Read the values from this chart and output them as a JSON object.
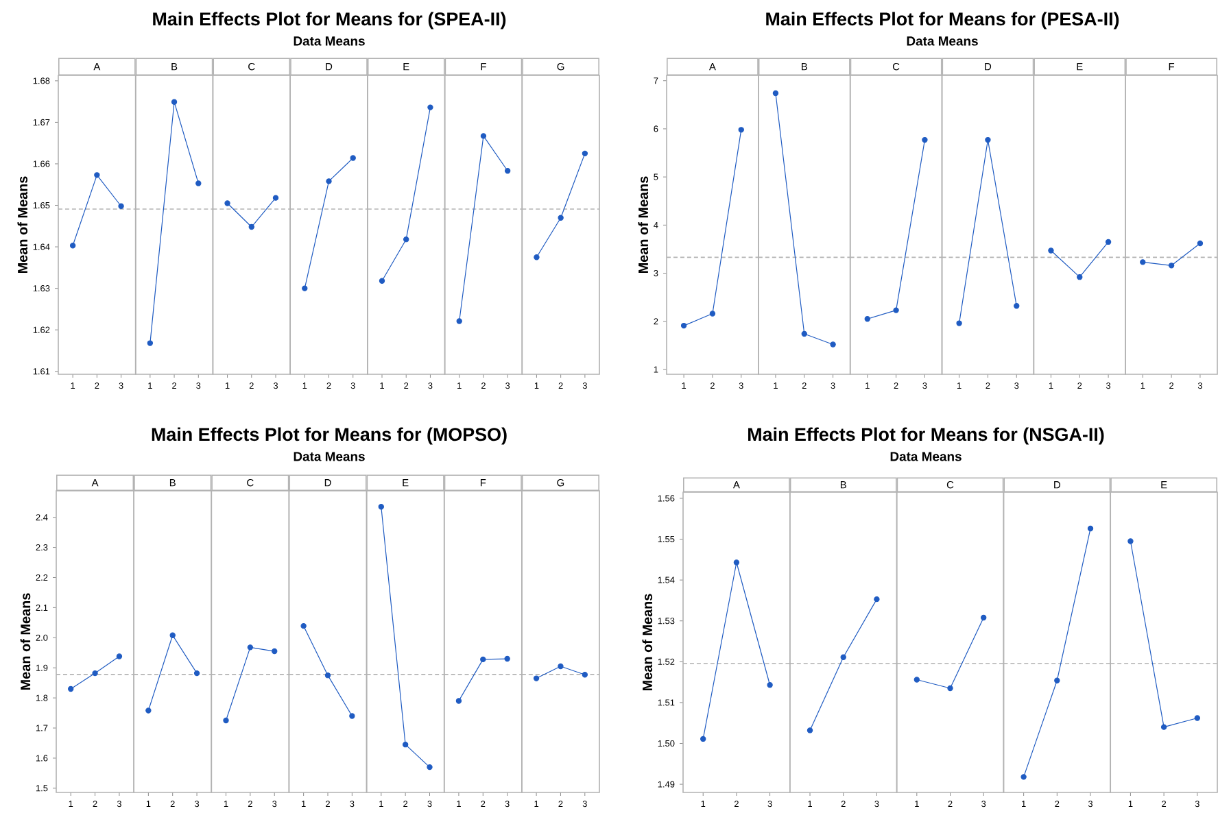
{
  "chart_data": [
    {
      "type": "other",
      "title": "Main Effects Plot for Means for (SPEA-II)",
      "subtitle": "Data Means"
    },
    {
      "type": "line",
      "title": "A",
      "ylabel": "Mean of Means",
      "categories": [
        "1",
        "2",
        "3"
      ],
      "values": [
        1.6403,
        1.6573,
        1.6498
      ],
      "color": "#1f5bc2",
      "marker": "circle",
      "ylim": [
        1.6093,
        1.6813
      ],
      "yticks": [
        1.61,
        1.62,
        1.63,
        1.64,
        1.65,
        1.66,
        1.67,
        1.68
      ],
      "ref_lines": [
        {
          "axis": "y",
          "value": 1.6491,
          "color": "#b4b4b4",
          "line_style": "dashed"
        }
      ]
    },
    {
      "type": "line",
      "title": "B",
      "categories": [
        "1",
        "2",
        "3"
      ],
      "values": [
        1.6168,
        1.6749,
        1.6553
      ],
      "color": "#1f5bc2",
      "marker": "circle",
      "ylim": [
        1.6093,
        1.6813
      ],
      "tick_labels": "x",
      "ref_lines": [
        {
          "axis": "y",
          "value": 1.6491,
          "color": "#b4b4b4",
          "line_style": "dashed"
        }
      ]
    },
    {
      "type": "line",
      "title": "C",
      "categories": [
        "1",
        "2",
        "3"
      ],
      "values": [
        1.6505,
        1.6448,
        1.6518
      ],
      "color": "#1f5bc2",
      "marker": "circle",
      "ylim": [
        1.6093,
        1.6813
      ],
      "tick_labels": "x",
      "ref_lines": [
        {
          "axis": "y",
          "value": 1.6491,
          "color": "#b4b4b4",
          "line_style": "dashed"
        }
      ]
    },
    {
      "type": "line",
      "title": "D",
      "categories": [
        "1",
        "2",
        "3"
      ],
      "values": [
        1.63,
        1.6558,
        1.6614
      ],
      "color": "#1f5bc2",
      "marker": "circle",
      "ylim": [
        1.6093,
        1.6813
      ],
      "tick_labels": "x",
      "ref_lines": [
        {
          "axis": "y",
          "value": 1.6491,
          "color": "#b4b4b4",
          "line_style": "dashed"
        }
      ]
    },
    {
      "type": "line",
      "title": "E",
      "categories": [
        "1",
        "2",
        "3"
      ],
      "values": [
        1.6318,
        1.6418,
        1.6736
      ],
      "color": "#1f5bc2",
      "marker": "circle",
      "ylim": [
        1.6093,
        1.6813
      ],
      "tick_labels": "x",
      "ref_lines": [
        {
          "axis": "y",
          "value": 1.6491,
          "color": "#b4b4b4",
          "line_style": "dashed"
        }
      ]
    },
    {
      "type": "line",
      "title": "F",
      "categories": [
        "1",
        "2",
        "3"
      ],
      "values": [
        1.6221,
        1.6667,
        1.6583
      ],
      "color": "#1f5bc2",
      "marker": "circle",
      "ylim": [
        1.6093,
        1.6813
      ],
      "tick_labels": "x",
      "ref_lines": [
        {
          "axis": "y",
          "value": 1.6491,
          "color": "#b4b4b4",
          "line_style": "dashed"
        }
      ]
    },
    {
      "type": "line",
      "title": "G",
      "categories": [
        "1",
        "2",
        "3"
      ],
      "values": [
        1.6375,
        1.647,
        1.6625
      ],
      "color": "#1f5bc2",
      "marker": "circle",
      "ylim": [
        1.6093,
        1.6813
      ],
      "tick_labels": "x",
      "ref_lines": [
        {
          "axis": "y",
          "value": 1.6491,
          "color": "#b4b4b4",
          "line_style": "dashed"
        }
      ]
    },
    {
      "type": "other",
      "title": "Main Effects Plot for Means for (PESA-II)",
      "subtitle": "Data Means"
    },
    {
      "type": "line",
      "title": "A",
      "ylabel": "Mean of Means",
      "categories": [
        "1",
        "2",
        "3"
      ],
      "values": [
        1.91,
        2.16,
        5.98
      ],
      "color": "#1f5bc2",
      "marker": "circle",
      "ylim": [
        0.9,
        7.11
      ],
      "yticks": [
        1,
        2,
        3,
        4,
        5,
        6,
        7
      ],
      "ref_lines": [
        {
          "axis": "y",
          "value": 3.33,
          "color": "#b4b4b4",
          "line_style": "dashed"
        }
      ]
    },
    {
      "type": "line",
      "title": "B",
      "categories": [
        "1",
        "2",
        "3"
      ],
      "values": [
        6.74,
        1.74,
        1.52
      ],
      "color": "#1f5bc2",
      "marker": "circle",
      "ylim": [
        0.9,
        7.11
      ],
      "tick_labels": "x",
      "ref_lines": [
        {
          "axis": "y",
          "value": 3.33,
          "color": "#b4b4b4",
          "line_style": "dashed"
        }
      ]
    },
    {
      "type": "line",
      "title": "C",
      "categories": [
        "1",
        "2",
        "3"
      ],
      "values": [
        2.05,
        2.23,
        5.77
      ],
      "color": "#1f5bc2",
      "marker": "circle",
      "ylim": [
        0.9,
        7.11
      ],
      "tick_labels": "x",
      "ref_lines": [
        {
          "axis": "y",
          "value": 3.33,
          "color": "#b4b4b4",
          "line_style": "dashed"
        }
      ]
    },
    {
      "type": "line",
      "title": "D",
      "categories": [
        "1",
        "2",
        "3"
      ],
      "values": [
        1.96,
        5.77,
        2.32
      ],
      "color": "#1f5bc2",
      "marker": "circle",
      "ylim": [
        0.9,
        7.11
      ],
      "tick_labels": "x",
      "ref_lines": [
        {
          "axis": "y",
          "value": 3.33,
          "color": "#b4b4b4",
          "line_style": "dashed"
        }
      ]
    },
    {
      "type": "line",
      "title": "E",
      "categories": [
        "1",
        "2",
        "3"
      ],
      "values": [
        3.47,
        2.92,
        3.65
      ],
      "color": "#1f5bc2",
      "marker": "circle",
      "ylim": [
        0.9,
        7.11
      ],
      "tick_labels": "x",
      "ref_lines": [
        {
          "axis": "y",
          "value": 3.33,
          "color": "#b4b4b4",
          "line_style": "dashed"
        }
      ]
    },
    {
      "type": "line",
      "title": "F",
      "categories": [
        "1",
        "2",
        "3"
      ],
      "values": [
        3.23,
        3.16,
        3.62
      ],
      "color": "#1f5bc2",
      "marker": "circle",
      "ylim": [
        0.9,
        7.11
      ],
      "tick_labels": "x",
      "ref_lines": [
        {
          "axis": "y",
          "value": 3.33,
          "color": "#b4b4b4",
          "line_style": "dashed"
        }
      ]
    },
    {
      "type": "other",
      "title": "Main Effects Plot for Means for (MOPSO)",
      "subtitle": "Data Means"
    },
    {
      "type": "line",
      "title": "A",
      "ylabel": "Mean of Means",
      "categories": [
        "1",
        "2",
        "3"
      ],
      "values": [
        1.83,
        1.882,
        1.938
      ],
      "color": "#1f5bc2",
      "marker": "circle",
      "ylim": [
        1.486,
        2.488
      ],
      "yticks": [
        1.5,
        1.6,
        1.7,
        1.8,
        1.9,
        {
          "value": 2.0,
          "label": "2.0"
        },
        2.1,
        2.2,
        2.3,
        2.4
      ],
      "ref_lines": [
        {
          "axis": "y",
          "value": 1.878,
          "color": "#b4b4b4",
          "line_style": "dashed"
        }
      ]
    },
    {
      "type": "line",
      "title": "B",
      "categories": [
        "1",
        "2",
        "3"
      ],
      "values": [
        1.758,
        2.008,
        1.882
      ],
      "color": "#1f5bc2",
      "marker": "circle",
      "ylim": [
        1.486,
        2.488
      ],
      "tick_labels": "x",
      "ref_lines": [
        {
          "axis": "y",
          "value": 1.878,
          "color": "#b4b4b4",
          "line_style": "dashed"
        }
      ]
    },
    {
      "type": "line",
      "title": "C",
      "categories": [
        "1",
        "2",
        "3"
      ],
      "values": [
        1.725,
        1.968,
        1.955
      ],
      "color": "#1f5bc2",
      "marker": "circle",
      "ylim": [
        1.486,
        2.488
      ],
      "tick_labels": "x",
      "ref_lines": [
        {
          "axis": "y",
          "value": 1.878,
          "color": "#b4b4b4",
          "line_style": "dashed"
        }
      ]
    },
    {
      "type": "line",
      "title": "D",
      "categories": [
        "1",
        "2",
        "3"
      ],
      "values": [
        2.039,
        1.875,
        1.74
      ],
      "color": "#1f5bc2",
      "marker": "circle",
      "ylim": [
        1.486,
        2.488
      ],
      "tick_labels": "x",
      "ref_lines": [
        {
          "axis": "y",
          "value": 1.878,
          "color": "#b4b4b4",
          "line_style": "dashed"
        }
      ]
    },
    {
      "type": "line",
      "title": "E",
      "categories": [
        "1",
        "2",
        "3"
      ],
      "values": [
        2.435,
        1.645,
        1.57
      ],
      "color": "#1f5bc2",
      "marker": "circle",
      "ylim": [
        1.486,
        2.488
      ],
      "tick_labels": "x",
      "ref_lines": [
        {
          "axis": "y",
          "value": 1.878,
          "color": "#b4b4b4",
          "line_style": "dashed"
        }
      ]
    },
    {
      "type": "line",
      "title": "F",
      "categories": [
        "1",
        "2",
        "3"
      ],
      "values": [
        1.79,
        1.928,
        1.93
      ],
      "color": "#1f5bc2",
      "marker": "circle",
      "ylim": [
        1.486,
        2.488
      ],
      "tick_labels": "x",
      "ref_lines": [
        {
          "axis": "y",
          "value": 1.878,
          "color": "#b4b4b4",
          "line_style": "dashed"
        }
      ]
    },
    {
      "type": "line",
      "title": "G",
      "categories": [
        "1",
        "2",
        "3"
      ],
      "values": [
        1.865,
        1.905,
        1.877
      ],
      "color": "#1f5bc2",
      "marker": "circle",
      "ylim": [
        1.486,
        2.488
      ],
      "tick_labels": "x",
      "ref_lines": [
        {
          "axis": "y",
          "value": 1.878,
          "color": "#b4b4b4",
          "line_style": "dashed"
        }
      ]
    },
    {
      "type": "other",
      "title": "Main Effects Plot for Means for (NSGA-II)",
      "subtitle": "Data Means"
    },
    {
      "type": "line",
      "title": "A",
      "ylabel": "Mean of Means",
      "categories": [
        "1",
        "2",
        "3"
      ],
      "values": [
        1.5011,
        1.5443,
        1.5143
      ],
      "color": "#1f5bc2",
      "marker": "circle",
      "ylim": [
        1.488,
        1.5615
      ],
      "yticks": [
        1.49,
        {
          "value": 1.5,
          "label": "1.50"
        },
        1.51,
        1.52,
        1.53,
        1.54,
        1.55,
        1.56
      ],
      "ref_lines": [
        {
          "axis": "y",
          "value": 1.5196,
          "color": "#b4b4b4",
          "line_style": "dashed"
        }
      ]
    },
    {
      "type": "line",
      "title": "B",
      "categories": [
        "1",
        "2",
        "3"
      ],
      "values": [
        1.5032,
        1.5211,
        1.5353
      ],
      "color": "#1f5bc2",
      "marker": "circle",
      "ylim": [
        1.488,
        1.5615
      ],
      "tick_labels": "x",
      "ref_lines": [
        {
          "axis": "y",
          "value": 1.5196,
          "color": "#b4b4b4",
          "line_style": "dashed"
        }
      ]
    },
    {
      "type": "line",
      "title": "C",
      "categories": [
        "1",
        "2",
        "3"
      ],
      "values": [
        1.5156,
        1.5135,
        1.5308
      ],
      "color": "#1f5bc2",
      "marker": "circle",
      "ylim": [
        1.488,
        1.5615
      ],
      "tick_labels": "x",
      "ref_lines": [
        {
          "axis": "y",
          "value": 1.5196,
          "color": "#b4b4b4",
          "line_style": "dashed"
        }
      ]
    },
    {
      "type": "line",
      "title": "D",
      "categories": [
        "1",
        "2",
        "3"
      ],
      "values": [
        1.4918,
        1.5154,
        1.5526
      ],
      "color": "#1f5bc2",
      "marker": "circle",
      "ylim": [
        1.488,
        1.5615
      ],
      "tick_labels": "x",
      "ref_lines": [
        {
          "axis": "y",
          "value": 1.5196,
          "color": "#b4b4b4",
          "line_style": "dashed"
        }
      ]
    },
    {
      "type": "line",
      "title": "E",
      "categories": [
        "1",
        "2",
        "3"
      ],
      "values": [
        1.5495,
        1.504,
        1.5062
      ],
      "color": "#1f5bc2",
      "marker": "circle",
      "ylim": [
        1.488,
        1.5615
      ],
      "tick_labels": "x",
      "ref_lines": [
        {
          "axis": "y",
          "value": 1.5196,
          "color": "#b4b4b4",
          "line_style": "dashed"
        }
      ]
    }
  ]
}
